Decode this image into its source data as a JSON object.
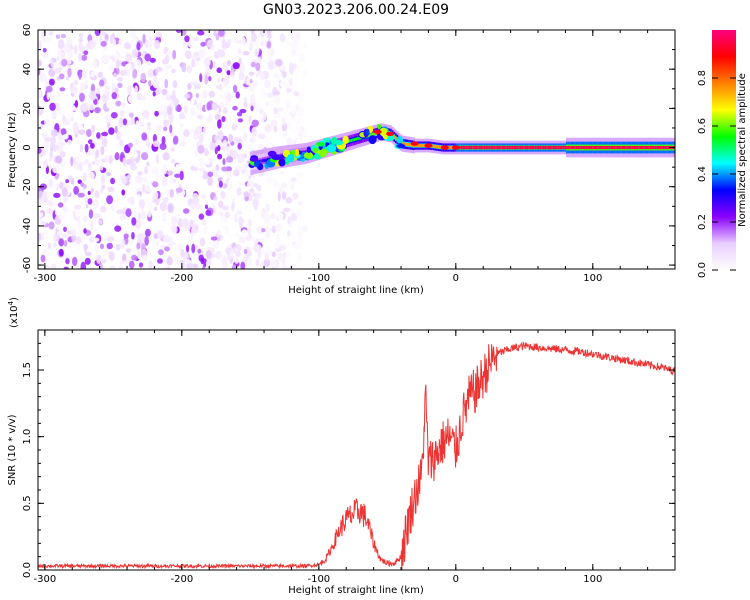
{
  "chart_data": [
    {
      "type": "heatmap",
      "title": "GN03.2023.206.00.24.E09",
      "xlabel": "Height of straight line (km)",
      "ylabel": "Frequency (Hz)",
      "xlim": [
        -305,
        160
      ],
      "ylim": [
        -62,
        60
      ],
      "xticks": [
        -300,
        -200,
        -100,
        0,
        100
      ],
      "yticks": [
        -60,
        -40,
        -20,
        0,
        20,
        40,
        60
      ],
      "noise_region_x": [
        -305,
        -110
      ],
      "signal_ridge": {
        "x": [
          -150,
          -130,
          -110,
          -90,
          -75,
          -65,
          -55,
          -48,
          -40,
          -30,
          -20,
          -10,
          0,
          50,
          100,
          160
        ],
        "frequency": [
          -8,
          -5,
          -3,
          1,
          4,
          6,
          8,
          7,
          2,
          1,
          1,
          0,
          0,
          0,
          0,
          0
        ]
      },
      "colorbar": {
        "label": "Normalized spectral amplitude",
        "range": [
          0,
          1
        ],
        "ticks": [
          0.0,
          0.2,
          0.4,
          0.6,
          0.8
        ],
        "tick_labels": [
          "0.0",
          "0.2",
          "0.4",
          "0.6",
          "0.8"
        ],
        "colormap": [
          "#ffffff",
          "#e8ccff",
          "#8a00ff",
          "#0000ff",
          "#00ffff",
          "#00ff00",
          "#ffff00",
          "#ff8000",
          "#ff0000",
          "#ff0080"
        ]
      }
    },
    {
      "type": "line",
      "xlabel": "Height of straight line (km)",
      "ylabel": "SNR (10 * v/v)",
      "yscale_label": "(x10",
      "yscale_exp": "4",
      "yscale_close": ")",
      "xlim": [
        -305,
        160
      ],
      "ylim": [
        0,
        1.8
      ],
      "xticks": [
        -300,
        -200,
        -100,
        0,
        100
      ],
      "yticks": [
        0.0,
        0.5,
        1.0,
        1.5
      ],
      "ytick_labels": [
        "0.0",
        "0.5",
        "1.0",
        "1.5"
      ],
      "line_color": "#ee3333",
      "series": [
        {
          "name": "SNR",
          "x": [
            -305,
            -200,
            -110,
            -100,
            -95,
            -90,
            -85,
            -80,
            -75,
            -70,
            -65,
            -60,
            -55,
            -50,
            -45,
            -40,
            -35,
            -30,
            -25,
            -22,
            -20,
            -15,
            -10,
            -5,
            0,
            5,
            10,
            15,
            20,
            25,
            30,
            40,
            50,
            60,
            70,
            80,
            90,
            100,
            110,
            120,
            130,
            140,
            150,
            160
          ],
          "y": [
            0.03,
            0.03,
            0.03,
            0.04,
            0.08,
            0.18,
            0.3,
            0.38,
            0.42,
            0.45,
            0.38,
            0.2,
            0.08,
            0.05,
            0.05,
            0.1,
            0.35,
            0.55,
            0.7,
            1.3,
            0.8,
            0.85,
            0.95,
            1.0,
            0.9,
            1.15,
            1.3,
            1.35,
            1.45,
            1.55,
            1.62,
            1.66,
            1.68,
            1.67,
            1.66,
            1.65,
            1.64,
            1.62,
            1.6,
            1.58,
            1.56,
            1.54,
            1.52,
            1.49
          ]
        }
      ]
    }
  ]
}
